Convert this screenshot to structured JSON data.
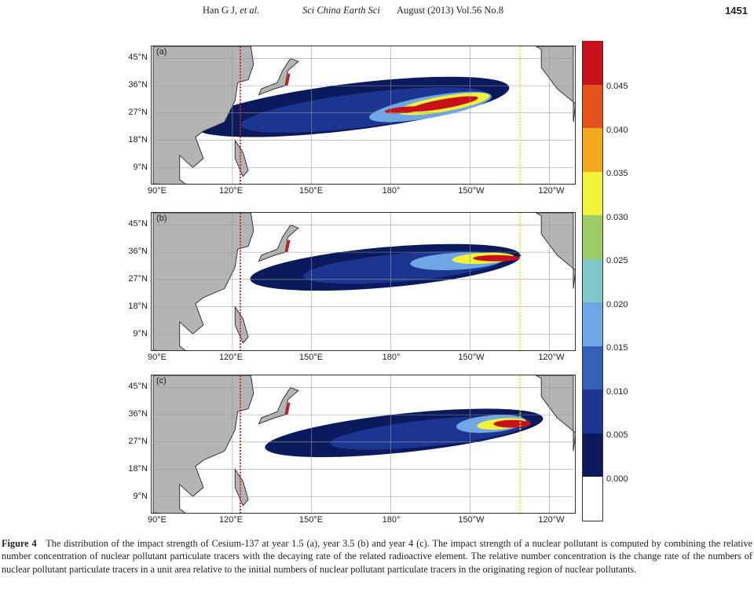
{
  "header": {
    "authors": "Han G J,",
    "et_al": "et al.",
    "journal": "Sci China Earth Sci",
    "issue": "August (2013) Vol.56 No.8",
    "page": "1451"
  },
  "panels": [
    {
      "label": "(a)",
      "year": 1.5
    },
    {
      "label": "(b)",
      "year": 3.5
    },
    {
      "label": "(c)",
      "year": 4
    }
  ],
  "lat_ticks": [
    "45°N",
    "36°N",
    "27°N",
    "18°N",
    "9°N"
  ],
  "lon_ticks": [
    "90°E",
    "120°E",
    "150°E",
    "180°",
    "150°W",
    "120°W"
  ],
  "colorbar": {
    "ticks": [
      "0.045",
      "0.040",
      "0.035",
      "0.030",
      "0.025",
      "0.020",
      "0.015",
      "0.010",
      "0.005",
      "0.000"
    ],
    "colors": [
      "#ffffff",
      "#0b1a5c",
      "#1c3590",
      "#3461b8",
      "#6fa6e6",
      "#7ec8c8",
      "#9ccc66",
      "#f2f23a",
      "#f3a81f",
      "#e4531c",
      "#c8101a"
    ]
  },
  "caption": {
    "label": "Figure 4",
    "text": "The distribution of the impact strength of Cesium-137 at year 1.5 (a), year 3.5 (b) and year 4 (c). The impact strength of a nuclear pollutant is computed by combining the relative number concentration of nuclear pollutant particulate tracers with the decaying rate of the related radioactive element. The relative number concentration is the change rate of the numbers of nuclear pollutant particulate tracers in a unit area relative to the initial numbers of nuclear pollutant particulate tracers in the originating region of nuclear pollutants."
  }
}
